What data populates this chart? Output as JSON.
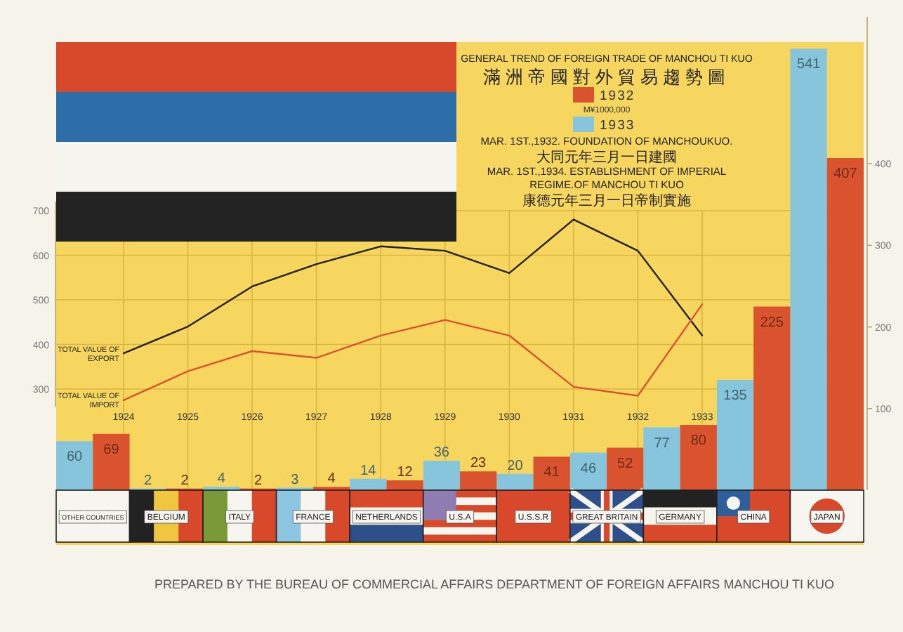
{
  "chart_data": [
    {
      "type": "bar",
      "title": "GENERAL TREND OF FOREIGN TRADE OF MANCHOU TI KUO",
      "subtitle": "滿洲帝國對外貿易趨勢圖",
      "categories": [
        "OTHER COUNTRIES",
        "BELGIUM",
        "ITALY",
        "FRANCE",
        "NETHERLANDS",
        "U.S.A",
        "U.S.S.R",
        "GREAT BRITAIN",
        "GERMANY",
        "CHINA",
        "JAPAN"
      ],
      "series": [
        {
          "name": "1933",
          "color": "#86c5dc",
          "values": [
            60,
            2,
            4,
            3,
            14,
            36,
            20,
            46,
            77,
            135,
            541
          ]
        },
        {
          "name": "1932",
          "color": "#d9532f",
          "values": [
            69,
            2,
            2,
            4,
            12,
            23,
            41,
            52,
            80,
            225,
            407
          ]
        }
      ],
      "ylim": [
        0,
        580
      ],
      "yticks": [
        100,
        200,
        300,
        400
      ],
      "data_labels": true,
      "legend": "top",
      "annotations": [
        "M¥1000,000",
        "PREPARED BY THE BUREAU OF COMMERCIAL AFFAIRS DEPARTMENT OF FOREIGN AFFAIRS MANCHOU TI KUO"
      ]
    },
    {
      "type": "line",
      "categories": [
        "1924",
        "1925",
        "1926",
        "1927",
        "1928",
        "1929",
        "1930",
        "1931",
        "1932",
        "1933"
      ],
      "series": [
        {
          "name": "TOTAL VALUE OF EXPORT",
          "color": "#231f1c",
          "values": [
            380,
            440,
            530,
            580,
            620,
            610,
            560,
            680,
            610,
            420
          ]
        },
        {
          "name": "TOTAL VALUE OF IMPORT",
          "color": "#d9532f",
          "values": [
            275,
            340,
            385,
            370,
            420,
            455,
            420,
            305,
            285,
            490
          ]
        }
      ],
      "ylim": [
        260,
        720
      ],
      "yticks": [
        300,
        400,
        500,
        600,
        700
      ],
      "grid": true,
      "annotations": [
        "MAR. 1ST.,1932. FOUNDATION OF MANCHOUKUO.",
        "大同元年三月一日建國",
        "MAR. 1ST.,1934. ESTABLISHMENT OF IMPERIAL REGIME.OF MANCHOU TI KUO",
        "康德元年三月一日帝制實施"
      ]
    }
  ]
}
